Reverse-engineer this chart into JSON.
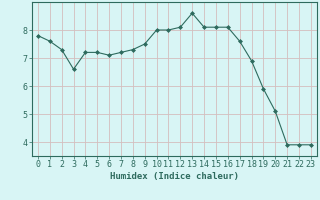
{
  "xlabel": "Humidex (Indice chaleur)",
  "ylabel": "",
  "x_values": [
    0,
    1,
    2,
    3,
    4,
    5,
    6,
    7,
    8,
    9,
    10,
    11,
    12,
    13,
    14,
    15,
    16,
    17,
    18,
    19,
    20,
    21,
    22,
    23
  ],
  "y_values": [
    7.8,
    7.6,
    7.3,
    6.6,
    7.2,
    7.2,
    7.1,
    7.2,
    7.3,
    7.5,
    8.0,
    8.0,
    8.1,
    8.6,
    8.1,
    8.1,
    8.1,
    7.6,
    6.9,
    5.9,
    5.1,
    3.9,
    3.9,
    3.9
  ],
  "line_color": "#2e6b5e",
  "marker": "D",
  "marker_size": 2.0,
  "bg_color": "#d8f5f5",
  "grid_color": "#d4bebe",
  "axis_color": "#2e6b5e",
  "ylim": [
    3.5,
    9.0
  ],
  "yticks": [
    4,
    5,
    6,
    7,
    8
  ],
  "xticks": [
    0,
    1,
    2,
    3,
    4,
    5,
    6,
    7,
    8,
    9,
    10,
    11,
    12,
    13,
    14,
    15,
    16,
    17,
    18,
    19,
    20,
    21,
    22,
    23
  ],
  "label_fontsize": 6.5,
  "tick_fontsize": 6.0
}
